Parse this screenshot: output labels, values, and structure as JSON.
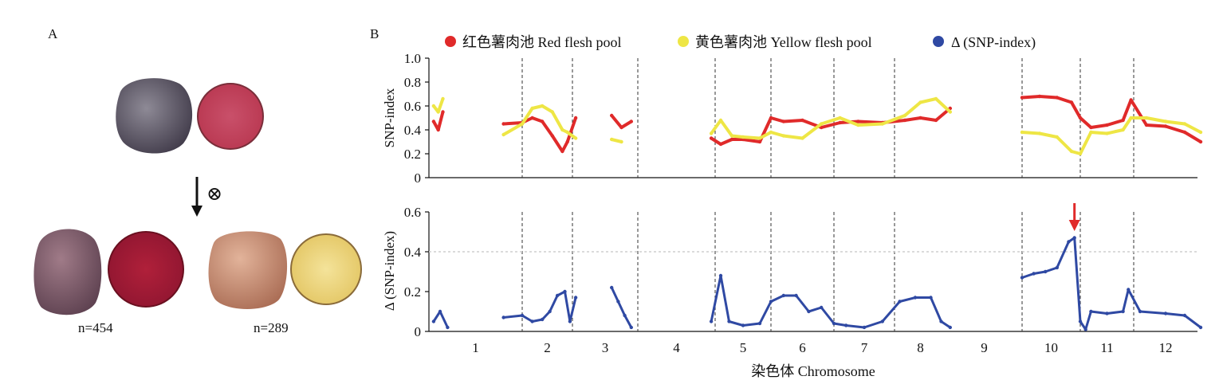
{
  "panel_a": {
    "label": "A",
    "parent": {
      "skin_color": "#5f5868",
      "flesh_color": "#c4445a"
    },
    "cross_symbol": "⊗",
    "offspring": [
      {
        "count_label": "n=454",
        "skin_color": "#7a5a6a",
        "flesh_color": "#a81e36"
      },
      {
        "count_label": "n=289",
        "skin_color": "#c98a6e",
        "flesh_color": "#ecd37a"
      }
    ]
  },
  "panel_b": {
    "label": "B",
    "legend": [
      {
        "label": "红色薯肉池 Red flesh pool",
        "color": "#e02a2a"
      },
      {
        "label": "黄色薯肉池 Yellow flesh pool",
        "color": "#eee645"
      },
      {
        "label": "Δ (SNP-index)",
        "color": "#2f49a3"
      }
    ],
    "xlabel": "染色体 Chromosome",
    "threshold": 0.4,
    "highlight_chromosome": "10"
  },
  "chart_data": [
    {
      "type": "line",
      "title": "",
      "ylabel": "SNP-index",
      "ylim": [
        0,
        1.0
      ],
      "yticks": [
        "0",
        "0.2",
        "0.4",
        "0.6",
        "0.8",
        "1.0"
      ],
      "xlabel": "",
      "categories": [
        "1",
        "2",
        "3",
        "4",
        "5",
        "6",
        "7",
        "8",
        "9",
        "10",
        "11",
        "12"
      ],
      "grid": false,
      "series": [
        {
          "name": "红色薯肉池 Red flesh pool",
          "color": "#e02a2a",
          "points": [
            [
              0.55,
              0.47
            ],
            [
              0.6,
              0.4
            ],
            [
              0.65,
              0.55
            ],
            [
              1.3,
              0.45
            ],
            [
              1.5,
              0.46
            ],
            [
              1.7,
              0.5
            ],
            [
              1.9,
              0.47
            ],
            [
              2.1,
              0.35
            ],
            [
              2.3,
              0.22
            ],
            [
              2.4,
              0.3
            ],
            [
              2.55,
              0.5
            ],
            [
              3.1,
              0.52
            ],
            [
              3.25,
              0.42
            ],
            [
              3.4,
              0.47
            ],
            [
              4.45,
              0.33
            ],
            [
              4.6,
              0.28
            ],
            [
              4.8,
              0.32
            ],
            [
              5.0,
              0.32
            ],
            [
              5.3,
              0.3
            ],
            [
              5.5,
              0.5
            ],
            [
              5.7,
              0.47
            ],
            [
              6.0,
              0.48
            ],
            [
              6.3,
              0.42
            ],
            [
              6.6,
              0.46
            ],
            [
              6.9,
              0.47
            ],
            [
              7.3,
              0.46
            ],
            [
              7.7,
              0.48
            ],
            [
              8.0,
              0.5
            ],
            [
              8.3,
              0.48
            ],
            [
              8.55,
              0.58
            ],
            [
              9.5,
              0.67
            ],
            [
              9.8,
              0.68
            ],
            [
              10.1,
              0.67
            ],
            [
              10.35,
              0.63
            ],
            [
              10.5,
              0.5
            ],
            [
              10.7,
              0.42
            ],
            [
              11.0,
              0.44
            ],
            [
              11.3,
              0.48
            ],
            [
              11.45,
              0.65
            ],
            [
              11.7,
              0.44
            ],
            [
              12.0,
              0.43
            ],
            [
              12.3,
              0.38
            ],
            [
              12.55,
              0.3
            ]
          ]
        },
        {
          "name": "黄色薯肉池 Yellow flesh pool",
          "color": "#eee645",
          "points": [
            [
              0.55,
              0.6
            ],
            [
              0.6,
              0.55
            ],
            [
              0.65,
              0.66
            ],
            [
              1.3,
              0.36
            ],
            [
              1.5,
              0.45
            ],
            [
              1.7,
              0.58
            ],
            [
              1.9,
              0.6
            ],
            [
              2.1,
              0.55
            ],
            [
              2.3,
              0.4
            ],
            [
              2.4,
              0.38
            ],
            [
              2.55,
              0.33
            ],
            [
              3.1,
              0.32
            ],
            [
              3.25,
              0.3
            ],
            [
              4.45,
              0.37
            ],
            [
              4.6,
              0.48
            ],
            [
              4.8,
              0.35
            ],
            [
              5.0,
              0.34
            ],
            [
              5.3,
              0.33
            ],
            [
              5.5,
              0.38
            ],
            [
              5.7,
              0.35
            ],
            [
              6.0,
              0.33
            ],
            [
              6.3,
              0.45
            ],
            [
              6.6,
              0.5
            ],
            [
              6.9,
              0.44
            ],
            [
              7.3,
              0.45
            ],
            [
              7.7,
              0.52
            ],
            [
              8.0,
              0.63
            ],
            [
              8.3,
              0.66
            ],
            [
              8.55,
              0.55
            ],
            [
              9.5,
              0.38
            ],
            [
              9.8,
              0.37
            ],
            [
              10.1,
              0.34
            ],
            [
              10.35,
              0.22
            ],
            [
              10.5,
              0.2
            ],
            [
              10.7,
              0.38
            ],
            [
              11.0,
              0.37
            ],
            [
              11.3,
              0.4
            ],
            [
              11.45,
              0.5
            ],
            [
              11.7,
              0.5
            ],
            [
              12.0,
              0.47
            ],
            [
              12.3,
              0.45
            ],
            [
              12.55,
              0.38
            ]
          ]
        }
      ]
    },
    {
      "type": "scatter",
      "title": "",
      "ylabel": "Δ (SNP-index)",
      "ylim": [
        0,
        0.6
      ],
      "yticks": [
        "0",
        "0.2",
        "0.4",
        "0.6"
      ],
      "xlabel": "染色体 Chromosome",
      "categories": [
        "1",
        "2",
        "3",
        "4",
        "5",
        "6",
        "7",
        "8",
        "9",
        "10",
        "11",
        "12"
      ],
      "grid": false,
      "series": [
        {
          "name": "Δ (SNP-index)",
          "color": "#2f49a3",
          "points": [
            [
              0.55,
              0.05
            ],
            [
              0.62,
              0.1
            ],
            [
              0.7,
              0.02
            ],
            [
              1.3,
              0.07
            ],
            [
              1.5,
              0.08
            ],
            [
              1.7,
              0.05
            ],
            [
              1.9,
              0.06
            ],
            [
              2.05,
              0.1
            ],
            [
              2.2,
              0.18
            ],
            [
              2.35,
              0.2
            ],
            [
              2.45,
              0.05
            ],
            [
              2.55,
              0.17
            ],
            [
              3.1,
              0.22
            ],
            [
              3.2,
              0.15
            ],
            [
              3.3,
              0.08
            ],
            [
              3.4,
              0.02
            ],
            [
              4.45,
              0.05
            ],
            [
              4.6,
              0.28
            ],
            [
              4.75,
              0.05
            ],
            [
              5.0,
              0.03
            ],
            [
              5.3,
              0.04
            ],
            [
              5.5,
              0.15
            ],
            [
              5.7,
              0.18
            ],
            [
              5.9,
              0.18
            ],
            [
              6.1,
              0.1
            ],
            [
              6.3,
              0.12
            ],
            [
              6.5,
              0.04
            ],
            [
              6.7,
              0.03
            ],
            [
              7.0,
              0.02
            ],
            [
              7.3,
              0.05
            ],
            [
              7.6,
              0.15
            ],
            [
              7.9,
              0.17
            ],
            [
              8.2,
              0.17
            ],
            [
              8.4,
              0.05
            ],
            [
              8.55,
              0.02
            ],
            [
              9.5,
              0.27
            ],
            [
              9.7,
              0.29
            ],
            [
              9.9,
              0.3
            ],
            [
              10.1,
              0.32
            ],
            [
              10.3,
              0.45
            ],
            [
              10.4,
              0.47
            ],
            [
              10.5,
              0.05
            ],
            [
              10.6,
              0.01
            ],
            [
              10.7,
              0.1
            ],
            [
              11.0,
              0.09
            ],
            [
              11.3,
              0.1
            ],
            [
              11.4,
              0.21
            ],
            [
              11.6,
              0.1
            ],
            [
              12.0,
              0.09
            ],
            [
              12.3,
              0.08
            ],
            [
              12.55,
              0.02
            ]
          ]
        }
      ]
    }
  ]
}
